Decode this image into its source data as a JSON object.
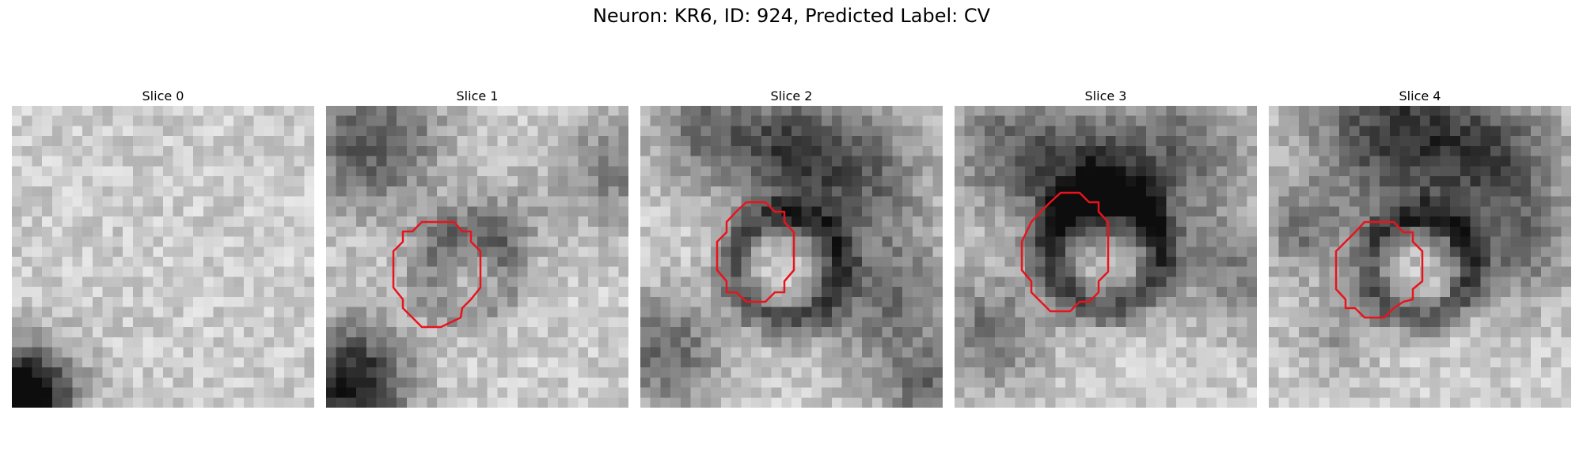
{
  "figure": {
    "title": "Neuron: KR6, ID: 924, Predicted Label: CV",
    "colormap": "gray",
    "outline_color": "#e8141c",
    "slices": [
      {
        "title": "Slice 0",
        "has_outline": false
      },
      {
        "title": "Slice 1",
        "has_outline": true
      },
      {
        "title": "Slice 2",
        "has_outline": true
      },
      {
        "title": "Slice 3",
        "has_outline": true
      },
      {
        "title": "Slice 4",
        "has_outline": true
      }
    ]
  }
}
